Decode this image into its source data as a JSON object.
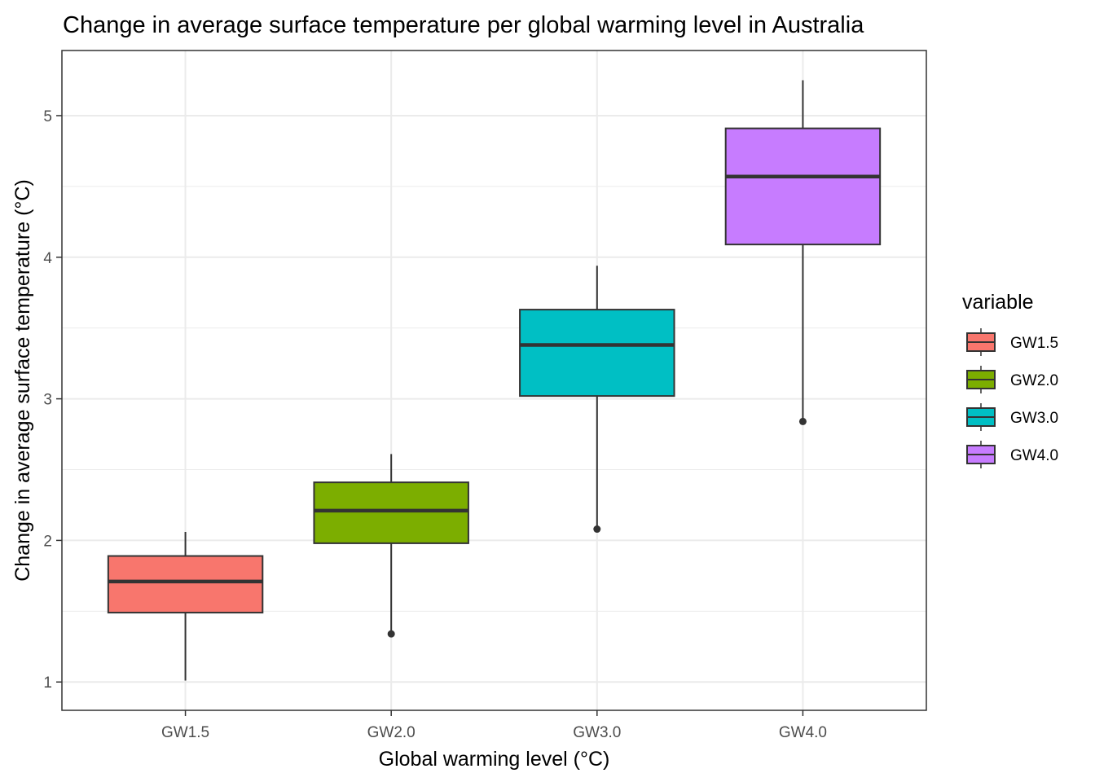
{
  "chart_data": {
    "type": "boxplot",
    "title": "Change in average surface temperature per global warming level in Australia",
    "xlabel": "Global warming level (°C)",
    "ylabel": "Change in average surface temperature (°C)",
    "categories": [
      "GW1.5",
      "GW2.0",
      "GW3.0",
      "GW4.0"
    ],
    "ylim": [
      0.8,
      5.46
    ],
    "yticks": [
      1,
      2,
      3,
      4,
      5
    ],
    "grid": true,
    "series": [
      {
        "name": "GW1.5",
        "color": "#F8766D",
        "whisker_low": 1.01,
        "q1": 1.49,
        "median": 1.71,
        "q3": 1.89,
        "whisker_high": 2.06,
        "outliers": []
      },
      {
        "name": "GW2.0",
        "color": "#7CAE00",
        "whisker_low": 1.34,
        "q1": 1.98,
        "median": 2.21,
        "q3": 2.41,
        "whisker_high": 2.61,
        "outliers": [
          1.34
        ]
      },
      {
        "name": "GW3.0",
        "color": "#00BFC4",
        "whisker_low": 2.08,
        "q1": 3.02,
        "median": 3.38,
        "q3": 3.63,
        "whisker_high": 3.94,
        "outliers": [
          2.08
        ]
      },
      {
        "name": "GW4.0",
        "color": "#C77CFF",
        "whisker_low": 2.84,
        "q1": 4.09,
        "median": 4.57,
        "q3": 4.91,
        "whisker_high": 5.25,
        "outliers": [
          2.84
        ]
      }
    ],
    "legend": {
      "title": "variable",
      "position": "right",
      "entries": [
        "GW1.5",
        "GW2.0",
        "GW3.0",
        "GW4.0"
      ]
    }
  }
}
